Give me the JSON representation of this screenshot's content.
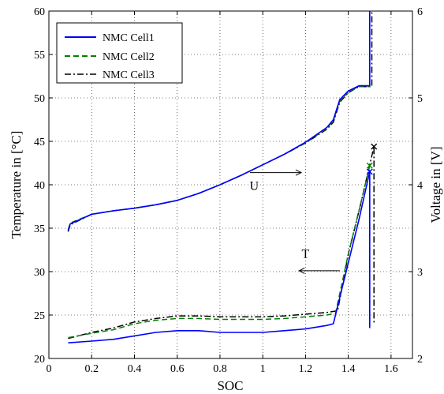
{
  "chart_data": {
    "type": "line",
    "xlabel": "SOC",
    "ylabel_left": "Temperature in [°C]",
    "ylabel_right": "Voltage in [V]",
    "xlim": [
      0,
      1.7
    ],
    "ylim_left": [
      20,
      60
    ],
    "ylim_right": [
      2,
      6
    ],
    "xticks": [
      "0",
      "0.2",
      "0.4",
      "0.6",
      "0.8",
      "1",
      "1.2",
      "1.4",
      "1.6"
    ],
    "xtick_values": [
      0,
      0.2,
      0.4,
      0.6,
      0.8,
      1.0,
      1.2,
      1.4,
      1.6
    ],
    "yticks_left": [
      "20",
      "25",
      "30",
      "35",
      "40",
      "45",
      "50",
      "55",
      "60"
    ],
    "ytick_values_left": [
      20,
      25,
      30,
      35,
      40,
      45,
      50,
      55,
      60
    ],
    "yticks_right": [
      "2",
      "3",
      "4",
      "5",
      "6"
    ],
    "ytick_values_right": [
      2,
      3,
      4,
      5,
      6
    ],
    "grid": true,
    "legend_position": "top-left",
    "colors": {
      "cell1": "#0000ff",
      "cell2": "#008000",
      "cell3": "#000000"
    },
    "annotations": [
      {
        "text": "U",
        "arrow_from": [
          0.94,
          41.4
        ],
        "arrow_to": [
          1.18,
          41.4
        ],
        "label_at": [
          0.96,
          39.4
        ]
      },
      {
        "text": "T",
        "arrow_from": [
          1.36,
          30.1
        ],
        "arrow_to": [
          1.17,
          30.1
        ],
        "label_at": [
          1.2,
          31.6
        ]
      }
    ],
    "series": [
      {
        "name": "NMC Cell1",
        "axis": "right",
        "dash": "solid",
        "color": "#0000ff",
        "x": [
          0.09,
          0.1,
          0.2,
          0.3,
          0.4,
          0.5,
          0.6,
          0.7,
          0.8,
          0.9,
          1.0,
          1.1,
          1.2,
          1.3,
          1.33,
          1.36,
          1.4,
          1.45,
          1.5,
          1.5
        ],
        "y": [
          3.47,
          3.55,
          3.66,
          3.7,
          3.73,
          3.77,
          3.82,
          3.9,
          4.0,
          4.11,
          4.23,
          4.35,
          4.49,
          4.66,
          4.75,
          4.98,
          5.08,
          5.14,
          5.14,
          6.0
        ]
      },
      {
        "name": "NMC Cell1",
        "axis": "left",
        "dash": "solid",
        "color": "#0000ff",
        "x": [
          0.09,
          0.2,
          0.3,
          0.4,
          0.5,
          0.6,
          0.7,
          0.8,
          0.9,
          1.0,
          1.1,
          1.2,
          1.3,
          1.33,
          1.4,
          1.45,
          1.5,
          1.5
        ],
        "y": [
          21.8,
          22.0,
          22.2,
          22.6,
          23.0,
          23.2,
          23.2,
          23.0,
          23.0,
          23.0,
          23.2,
          23.4,
          23.8,
          24.0,
          31.0,
          36.0,
          41.5,
          23.5
        ]
      },
      {
        "name": "NMC Cell2",
        "axis": "right",
        "dash": "dashed",
        "color": "#008000",
        "x": [
          0.09,
          0.1,
          0.2,
          0.3,
          0.4,
          0.5,
          0.6,
          0.7,
          0.8,
          0.9,
          1.0,
          1.1,
          1.2,
          1.3,
          1.33,
          1.36,
          1.4,
          1.45,
          1.5,
          1.5
        ],
        "y": [
          3.48,
          3.56,
          3.66,
          3.7,
          3.73,
          3.77,
          3.82,
          3.9,
          4.0,
          4.11,
          4.23,
          4.35,
          4.48,
          4.65,
          4.74,
          4.96,
          5.07,
          5.13,
          5.13,
          6.0
        ]
      },
      {
        "name": "NMC Cell2",
        "axis": "left",
        "dash": "dashed",
        "color": "#008000",
        "x": [
          0.09,
          0.2,
          0.3,
          0.4,
          0.5,
          0.6,
          0.7,
          0.8,
          0.9,
          1.0,
          1.1,
          1.2,
          1.3,
          1.34,
          1.4,
          1.45,
          1.5,
          1.5
        ],
        "y": [
          22.4,
          22.9,
          23.3,
          24.0,
          24.4,
          24.6,
          24.6,
          24.5,
          24.5,
          24.5,
          24.6,
          24.8,
          25.0,
          25.2,
          32.0,
          37.0,
          42.2,
          23.8
        ]
      },
      {
        "name": "NMC Cell3",
        "axis": "right",
        "dash": "dash-dot",
        "color": "#000000",
        "x": [
          0.09,
          0.1,
          0.2,
          0.3,
          0.4,
          0.5,
          0.6,
          0.7,
          0.8,
          0.9,
          1.0,
          1.1,
          1.2,
          1.3,
          1.33,
          1.36,
          1.4,
          1.45,
          1.51,
          1.51
        ],
        "y": [
          3.46,
          3.54,
          3.66,
          3.7,
          3.73,
          3.77,
          3.82,
          3.9,
          4.0,
          4.11,
          4.23,
          4.35,
          4.48,
          4.64,
          4.72,
          4.95,
          5.06,
          5.13,
          5.13,
          6.0
        ]
      },
      {
        "name": "NMC Cell3",
        "axis": "left",
        "dash": "dash-dot",
        "color": "#000000",
        "x": [
          0.09,
          0.2,
          0.3,
          0.4,
          0.5,
          0.6,
          0.7,
          0.8,
          0.9,
          1.0,
          1.1,
          1.2,
          1.3,
          1.35,
          1.4,
          1.46,
          1.52,
          1.52
        ],
        "y": [
          22.3,
          23.0,
          23.5,
          24.2,
          24.6,
          24.9,
          24.9,
          24.8,
          24.8,
          24.8,
          24.9,
          25.1,
          25.3,
          25.5,
          32.0,
          38.0,
          44.4,
          24.0
        ]
      }
    ],
    "end_markers": [
      {
        "x": 1.5,
        "y": 41.5,
        "color": "#0000ff"
      },
      {
        "x": 1.5,
        "y": 42.2,
        "color": "#008000"
      },
      {
        "x": 1.52,
        "y": 44.4,
        "color": "#000000"
      }
    ]
  }
}
